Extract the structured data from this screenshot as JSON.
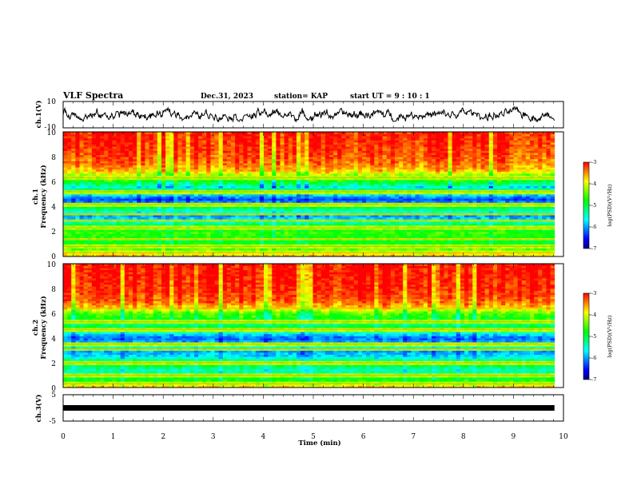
{
  "header": {
    "title": "VLF Spectra",
    "date": "Dec.31, 2023",
    "station": "station= KAP",
    "start": "start  UT =   9 : 10 : 1"
  },
  "chart_data": [
    {
      "type": "line",
      "panel": "ch1",
      "ylabel": "ch.1(V)",
      "ylim": [
        -10,
        10
      ],
      "yticks": [
        "10",
        "-10"
      ],
      "xlim": [
        0,
        10
      ],
      "x_end": 9.82,
      "signal_level_v": 0,
      "signal_range_v": [
        -5,
        6
      ],
      "color": "#000000"
    },
    {
      "type": "heatmap",
      "panel": "ch1",
      "ylabel_line1": "ch.1",
      "ylabel_line2": "Frequency (kHz)",
      "ylim": [
        0,
        10
      ],
      "yticks": [
        "0",
        "2",
        "4",
        "6",
        "8",
        "10"
      ],
      "xlim": [
        0,
        10
      ],
      "x_end": 9.82,
      "colorbar": {
        "label": "log(PSD)(V²/Hz)",
        "range": [
          -7,
          -3
        ],
        "ticks": [
          "-3",
          "-4",
          "-5",
          "-6",
          "-7"
        ],
        "colors": [
          "#000080",
          "#0000ff",
          "#0080ff",
          "#00ffff",
          "#00ff80",
          "#00ff00",
          "#80ff00",
          "#ffff00",
          "#ff8000",
          "#ff0000"
        ]
      },
      "profile": [
        [
          0,
          -3.6
        ],
        [
          0.3,
          -4.0
        ],
        [
          0.7,
          -4.6
        ],
        [
          1.0,
          -4.9
        ],
        [
          1.5,
          -4.8
        ],
        [
          1.9,
          -4.6
        ],
        [
          2.2,
          -4.9
        ],
        [
          2.6,
          -5.1
        ],
        [
          3.0,
          -5.8
        ],
        [
          3.3,
          -6.0
        ],
        [
          3.6,
          -5.5
        ],
        [
          3.9,
          -5.0
        ],
        [
          4.2,
          -5.9
        ],
        [
          4.6,
          -6.3
        ],
        [
          5.0,
          -5.7
        ],
        [
          5.3,
          -4.4
        ],
        [
          5.5,
          -5.8
        ],
        [
          5.8,
          -5.2
        ],
        [
          6.2,
          -4.6
        ],
        [
          6.5,
          -4.3
        ],
        [
          6.9,
          -3.7
        ],
        [
          7.5,
          -3.4
        ],
        [
          8.5,
          -3.2
        ],
        [
          10,
          -3.1
        ]
      ],
      "tones_khz": [
        0.3,
        0.8,
        1.4,
        2.3,
        2.9,
        3.4,
        4.2,
        5.2,
        6.3
      ]
    },
    {
      "type": "heatmap",
      "panel": "ch2",
      "ylabel_line1": "ch.2",
      "ylabel_line2": "Frequency (kHz)",
      "ylim": [
        0,
        10
      ],
      "yticks": [
        "0",
        "2",
        "4",
        "6",
        "8",
        "10"
      ],
      "xlim": [
        0,
        10
      ],
      "x_end": 9.82,
      "colorbar": {
        "label": "log(PSD)(V²/Hz)",
        "range": [
          -7,
          -3
        ],
        "ticks": [
          "-3",
          "-4",
          "-5",
          "-6",
          "-7"
        ],
        "colors": [
          "#000080",
          "#0000ff",
          "#0080ff",
          "#00ffff",
          "#00ff80",
          "#00ff00",
          "#80ff00",
          "#ffff00",
          "#ff8000",
          "#ff0000"
        ]
      },
      "profile": [
        [
          0,
          -3.6
        ],
        [
          0.3,
          -4.2
        ],
        [
          0.7,
          -4.9
        ],
        [
          1.0,
          -5.2
        ],
        [
          1.4,
          -5.4
        ],
        [
          1.8,
          -5.0
        ],
        [
          2.2,
          -5.2
        ],
        [
          2.6,
          -5.8
        ],
        [
          3.0,
          -6.0
        ],
        [
          3.3,
          -5.3
        ],
        [
          3.6,
          -5.8
        ],
        [
          4.0,
          -6.2
        ],
        [
          4.4,
          -5.6
        ],
        [
          4.8,
          -4.8
        ],
        [
          5.2,
          -5.3
        ],
        [
          5.6,
          -4.8
        ],
        [
          6.0,
          -4.5
        ],
        [
          6.3,
          -4.0
        ],
        [
          6.6,
          -3.6
        ],
        [
          7.0,
          -3.3
        ],
        [
          8.0,
          -3.1
        ],
        [
          10,
          -3.0
        ]
      ],
      "tones_khz": [
        0.3,
        1.0,
        2.0,
        3.1,
        3.5,
        4.7,
        5.3,
        6.4
      ]
    },
    {
      "type": "line",
      "panel": "ch3",
      "ylabel": "ch.3(V)",
      "ylim": [
        -5,
        5
      ],
      "yticks": [
        "5",
        "-5"
      ],
      "xlim": [
        0,
        10
      ],
      "x_end": 9.82,
      "signal_level_v": 0,
      "signal_range_v": [
        -0.3,
        0.3
      ],
      "color": "#000000"
    }
  ],
  "x_axis": {
    "label": "Time (min)",
    "ticks": [
      "0",
      "1",
      "2",
      "3",
      "4",
      "5",
      "6",
      "7",
      "8",
      "9",
      "10"
    ]
  }
}
